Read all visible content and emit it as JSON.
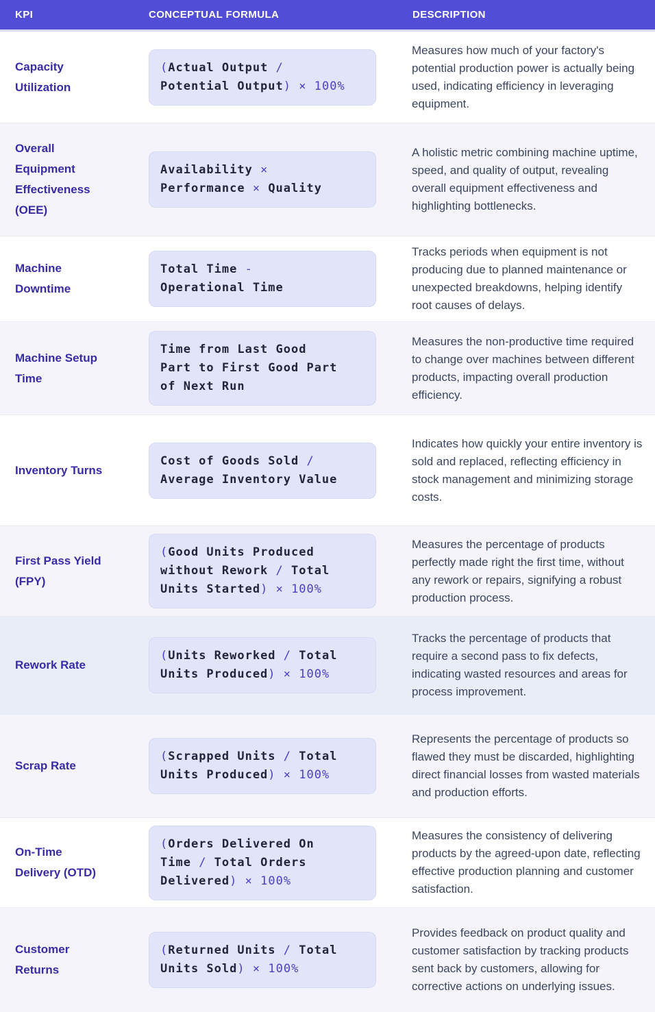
{
  "table": {
    "columns": [
      "KPI",
      "CONCEPTUAL FORMULA",
      "DESCRIPTION"
    ],
    "rows": [
      {
        "kpi": "Capacity Utilization",
        "formula_lines": [
          "(Actual Output /",
          "Potential Output) × 100%"
        ],
        "description": "Measures how much of your factory's potential production power is actually being used, indicating efficiency in leveraging equipment.",
        "variant": "white"
      },
      {
        "kpi": "Overall Equipment Effectiveness (OEE)",
        "formula_lines": [
          "Availability ×",
          "Performance × Quality"
        ],
        "description": "A holistic metric combining machine uptime, speed, and quality of output, revealing overall equipment effectiveness and highlighting bottlenecks.",
        "variant": "light"
      },
      {
        "kpi": "Machine Downtime",
        "formula_lines": [
          "Total Time -",
          "Operational Time"
        ],
        "description": "Tracks periods when equipment is not producing due to planned maintenance or unexpected breakdowns, helping identify root causes of delays.",
        "variant": "white"
      },
      {
        "kpi": "Machine Setup Time",
        "formula_lines": [
          "Time from Last Good",
          "Part to First Good Part",
          "of Next Run"
        ],
        "description": "Measures the non-productive time required to change over machines between different products, impacting overall production efficiency.",
        "variant": "light"
      },
      {
        "kpi": "Inventory Turns",
        "formula_lines": [
          "Cost of Goods Sold /",
          "Average Inventory Value"
        ],
        "description": "Indicates how quickly your entire inventory is sold and replaced, reflecting efficiency in stock management and minimizing storage costs.",
        "variant": "white"
      },
      {
        "kpi": "First Pass Yield (FPY)",
        "formula_lines": [
          "(Good Units Produced",
          "without Rework / Total",
          "Units Started) × 100%"
        ],
        "description": "Measures the percentage of products perfectly made right the first time, without any rework or repairs, signifying a robust production process.",
        "variant": "light"
      },
      {
        "kpi": "Rework Rate",
        "formula_lines": [
          "(Units Reworked / Total",
          "Units Produced) × 100%"
        ],
        "description": "Tracks the percentage of products that require a second pass to fix defects, indicating wasted resources and areas for process improvement.",
        "variant": "highlight"
      },
      {
        "kpi": "Scrap Rate",
        "formula_lines": [
          "(Scrapped Units / Total",
          "Units Produced) × 100%"
        ],
        "description": "Represents the percentage of products so flawed they must be discarded, highlighting direct financial losses from wasted materials and production efforts.",
        "variant": "light"
      },
      {
        "kpi": "On-Time Delivery (OTD)",
        "formula_lines": [
          "(Orders Delivered On",
          "Time / Total Orders",
          "Delivered) × 100%"
        ],
        "description": "Measures the consistency of delivering products by the agreed-upon date, reflecting effective production planning and customer satisfaction.",
        "variant": "white"
      },
      {
        "kpi": "Customer Returns",
        "formula_lines": [
          "(Returned Units / Total",
          "Units Sold) × 100%"
        ],
        "description": "Provides feedback on product quality and customer satisfaction by tracking products sent back by customers, allowing for corrective actions on underlying issues.",
        "variant": "light"
      }
    ]
  },
  "colors": {
    "header_bg": "#524dd6",
    "header_text": "#ffffff",
    "kpi_text": "#382ca6",
    "description_text": "#3c4660",
    "formula_text": "#23263b",
    "formula_operator": "#4a3fc6",
    "formula_box_bg": "#e2e5fa",
    "row_light_bg": "#f4f4fa",
    "row_highlight_bg": "#e9edf8",
    "divider": "#e9e9f2"
  }
}
